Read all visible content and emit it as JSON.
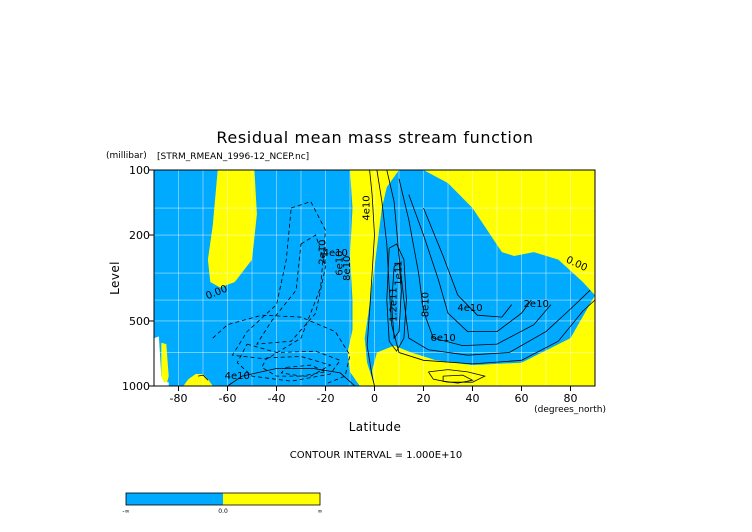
{
  "chart_data": {
    "type": "heatmap",
    "title": "Residual mean mass stream function",
    "subtitle": "[STRM_RMEAN_1996-12_NCEP.nc]",
    "xlabel": "Latitude",
    "xunits": "(degrees_north)",
    "ylabel": "Level",
    "yunits": "(millibar)",
    "xlim": [
      -90,
      90
    ],
    "ylim": [
      1000,
      100
    ],
    "y_scale": "log",
    "x_ticks": [
      -80,
      -60,
      -40,
      -20,
      0,
      20,
      40,
      60,
      80
    ],
    "x_tick_labels": [
      "-80",
      "-60",
      "-40",
      "-20",
      "0",
      "20",
      "40",
      "60",
      "80"
    ],
    "y_ticks": [
      100,
      200,
      500,
      1000
    ],
    "y_tick_labels": [
      "100",
      "200",
      "500",
      "1000"
    ],
    "grid": true,
    "contour_interval_label": "CONTOUR INTERVAL = 1.000E+10",
    "fill_colors": {
      "negative": "#00aaff",
      "positive": "#ffff00",
      "missing": "#ffffff"
    },
    "contour_labels": [
      {
        "text": "0.00",
        "lat": -64,
        "p": 380
      },
      {
        "text": "4e10",
        "lat": -2,
        "p": 150
      },
      {
        "text": "2e10",
        "lat": -20,
        "p": 240
      },
      {
        "text": "4e10",
        "lat": -16,
        "p": 250
      },
      {
        "text": "6e10",
        "lat": -13,
        "p": 270
      },
      {
        "text": "8e10",
        "lat": -10,
        "p": 285
      },
      {
        "text": "1e11",
        "lat": 11,
        "p": 300
      },
      {
        "text": "1.2e11",
        "lat": 9,
        "p": 420
      },
      {
        "text": "8e10",
        "lat": 22,
        "p": 420
      },
      {
        "text": "4e10",
        "lat": 39,
        "p": 450
      },
      {
        "text": "2e10",
        "lat": 66,
        "p": 430
      },
      {
        "text": "6e10",
        "lat": 28,
        "p": 620
      },
      {
        "text": "4e10",
        "lat": -56,
        "p": 930
      },
      {
        "text": "0.00",
        "lat": 82,
        "p": 280
      }
    ],
    "colorbar": {
      "labels": [
        "-∞",
        "0.0",
        "∞"
      ],
      "segments": [
        {
          "from": "-∞",
          "to": "0.0",
          "color": "#00aaff"
        },
        {
          "from": "0.0",
          "to": "∞",
          "color": "#ffff00"
        }
      ]
    }
  }
}
